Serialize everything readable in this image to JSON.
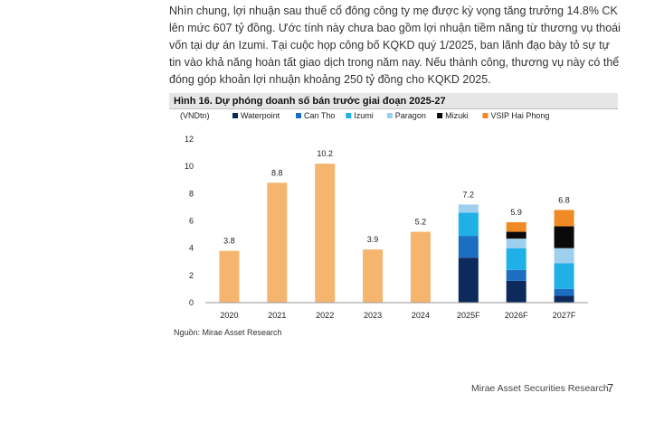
{
  "paragraph": "Nhìn chung, lợi nhuận sau thuế cổ đông công ty mẹ được kỳ vọng tăng trưởng 14.8% CK lên mức 607 tỷ đồng. Ước tính này chưa bao gồm lợi nhuận tiềm năng từ thương vụ thoái vốn tại dự án Izumi. Tại cuộc họp công bố KQKD quý 1/2025, ban lãnh đạo bày tỏ sự tự tin vào khả năng hoàn tất giao dịch trong năm nay. Nếu thành công, thương vụ này có thể đóng góp khoản lợi nhuận khoảng 250 tỷ đồng cho KQKD 2025.",
  "figure_title": "Hình 16. Dự phóng doanh số bán trước giai đoạn 2025-27",
  "source": "Nguồn: Mirae Asset Research",
  "footer": "Mirae Asset Securities Research",
  "page_number": "7",
  "chart_data": {
    "type": "bar",
    "unit_label": "(VNDtn)",
    "ylim": [
      0,
      12
    ],
    "yticks": [
      0,
      2,
      4,
      6,
      8,
      10,
      12
    ],
    "grid": false,
    "legend_position": "top",
    "categories": [
      "2020",
      "2021",
      "2022",
      "2023",
      "2024",
      "2025F",
      "2026F",
      "2027F"
    ],
    "totals": [
      3.8,
      8.8,
      10.2,
      3.9,
      5.2,
      7.2,
      5.9,
      6.8
    ],
    "total_labels": [
      "3.8",
      "8.8",
      "10.2",
      "3.9",
      "5.2",
      "7.2",
      "5.9",
      "6.8"
    ],
    "historical_color": "#f5b56e",
    "historical_count": 5,
    "series": [
      {
        "name": "Waterpoint",
        "color": "#0d2a5c",
        "values": [
          null,
          null,
          null,
          null,
          null,
          3.3,
          1.6,
          0.5
        ]
      },
      {
        "name": "Can Tho",
        "color": "#1b6ec2",
        "values": [
          null,
          null,
          null,
          null,
          null,
          1.6,
          0.8,
          0.5
        ]
      },
      {
        "name": "Izumi",
        "color": "#1fb0e8",
        "values": [
          null,
          null,
          null,
          null,
          null,
          1.7,
          1.6,
          1.9
        ]
      },
      {
        "name": "Paragon",
        "color": "#9fcfee",
        "values": [
          null,
          null,
          null,
          null,
          null,
          0.6,
          0.7,
          1.1
        ]
      },
      {
        "name": "Mizuki",
        "color": "#0a0a0a",
        "values": [
          null,
          null,
          null,
          null,
          null,
          0,
          0.5,
          1.6
        ]
      },
      {
        "name": "VSIP Hai Phong",
        "color": "#f08a24",
        "values": [
          null,
          null,
          null,
          null,
          null,
          0,
          0.7,
          1.2
        ]
      }
    ]
  }
}
